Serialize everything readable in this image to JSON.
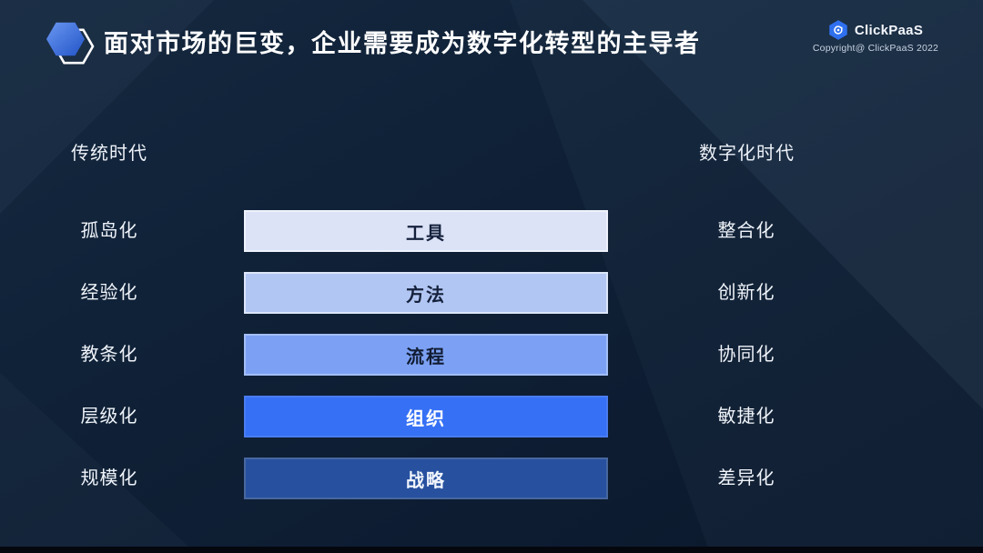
{
  "header": {
    "title": "面对市场的巨变，企业需要成为数字化转型的主导者",
    "bullet_icon": "hexagon-icon"
  },
  "brand": {
    "logo_icon": "clickpaas-logo-icon",
    "name": "ClickPaaS",
    "copyright": "Copyright@ ClickPaaS 2022"
  },
  "comparison": {
    "left_era": "传统时代",
    "right_era": "数字化时代",
    "rows": [
      {
        "traditional": "孤岛化",
        "dimension": "工具",
        "digital": "整合化",
        "bar_color": "#dce3f7",
        "bar_border": "#eef2fc",
        "text_color": "#15213c"
      },
      {
        "traditional": "经验化",
        "dimension": "方法",
        "digital": "创新化",
        "bar_color": "#b1c6f2",
        "bar_border": "#dce6fa",
        "text_color": "#15213c"
      },
      {
        "traditional": "教条化",
        "dimension": "流程",
        "digital": "协同化",
        "bar_color": "#7ca1f4",
        "bar_border": "#a3bef6",
        "text_color": "#111c33"
      },
      {
        "traditional": "层级化",
        "dimension": "组织",
        "digital": "敏捷化",
        "bar_color": "#3570f5",
        "bar_border": "#4a7cf0",
        "text_color": "#ffffff"
      },
      {
        "traditional": "规模化",
        "dimension": "战略",
        "digital": "差异化",
        "bar_color": "#27519f",
        "bar_border": "#47679f",
        "text_color": "#f2f6fc"
      }
    ]
  },
  "colors": {
    "background": "#0e1c31",
    "accent_blue": "#2f70ef",
    "title_text": "#ffffff",
    "bottom_strip": "#04070d"
  }
}
